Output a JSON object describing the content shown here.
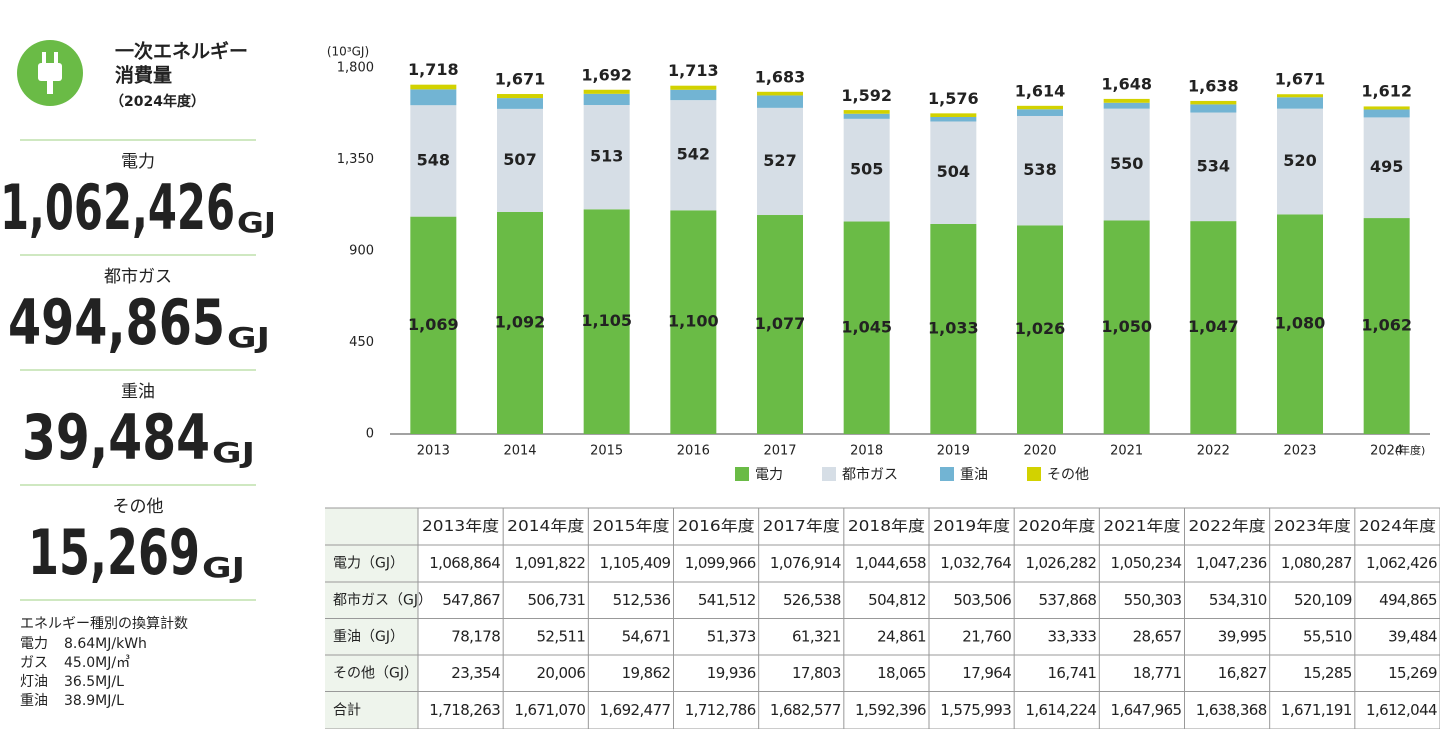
{
  "sidebar": {
    "title_lines": [
      "一次エネルギー",
      "消費量"
    ],
    "subtitle": "（2024年度）",
    "stats": [
      {
        "label": "電力",
        "value": "1,062,426",
        "unit": "GJ"
      },
      {
        "label": "都市ガス",
        "value": "494,865",
        "unit": "GJ"
      },
      {
        "label": "重油",
        "value": "39,484",
        "unit": "GJ"
      },
      {
        "label": "その他",
        "value": "15,269",
        "unit": "GJ"
      }
    ],
    "notes_title": "エネルギー種別の換算計数",
    "notes": [
      [
        "電力",
        "8.64MJ/kWh"
      ],
      [
        "ガス",
        "45.0MJ/㎥"
      ],
      [
        "灯油",
        "36.5MJ/L"
      ],
      [
        "重油",
        "38.9MJ/L"
      ]
    ]
  },
  "chart_data": {
    "type": "stacked_bar",
    "y_unit": "(10³GJ)",
    "x_unit": "(年度)",
    "categories": [
      "2013",
      "2014",
      "2015",
      "2016",
      "2017",
      "2018",
      "2019",
      "2020",
      "2021",
      "2022",
      "2023",
      "2024"
    ],
    "series": [
      {
        "name": "電力",
        "color": "#6abb46",
        "data_labels": true,
        "values": [
          1069,
          1092,
          1105,
          1100,
          1077,
          1045,
          1033,
          1026,
          1050,
          1047,
          1080,
          1062
        ],
        "value_labels": [
          "1,069",
          "1,092",
          "1,105",
          "1,100",
          "1,077",
          "1,045",
          "1,033",
          "1,026",
          "1,050",
          "1,047",
          "1,080",
          "1,062"
        ]
      },
      {
        "name": "都市ガス",
        "color": "#d6dee6",
        "data_labels": true,
        "values": [
          548,
          507,
          513,
          542,
          527,
          505,
          504,
          538,
          550,
          534,
          520,
          495
        ]
      },
      {
        "name": "重油",
        "color": "#72b4d3",
        "values": [
          78,
          53,
          55,
          51,
          61,
          25,
          22,
          33,
          29,
          40,
          56,
          39
        ]
      },
      {
        "name": "その他",
        "color": "#d2d200",
        "values": [
          23,
          20,
          20,
          20,
          18,
          18,
          18,
          17,
          19,
          17,
          15,
          15
        ]
      }
    ],
    "totals": [
      1718,
      1671,
      1692,
      1713,
      1683,
      1592,
      1576,
      1614,
      1648,
      1638,
      1671,
      1612
    ],
    "total_labels": [
      "1,718",
      "1,671",
      "1,692",
      "1,713",
      "1,683",
      "1,592",
      "1,576",
      "1,614",
      "1,648",
      "1,638",
      "1,671",
      "1,612"
    ],
    "total_color": "#7ac143",
    "ylim": [
      0,
      1800
    ],
    "yticks": [
      0,
      450,
      900,
      {
        "value": 1350,
        "label": "1,350"
      },
      {
        "value": 1800,
        "label": "1,800"
      }
    ]
  },
  "table": {
    "header": [
      "2013年度",
      "2014年度",
      "2015年度",
      "2016年度",
      "2017年度",
      "2018年度",
      "2019年度",
      "2020年度",
      "2021年度",
      "2022年度",
      "2023年度",
      "2024年度"
    ],
    "rows": [
      {
        "label": "電力（GJ）",
        "values": [
          "1,068,864",
          "1,091,822",
          "1,105,409",
          "1,099,966",
          "1,076,914",
          "1,044,658",
          "1,032,764",
          "1,026,282",
          "1,050,234",
          "1,047,236",
          "1,080,287",
          "1,062,426"
        ]
      },
      {
        "label": "都市ガス（GJ）",
        "values": [
          "547,867",
          "506,731",
          "512,536",
          "541,512",
          "526,538",
          "504,812",
          "503,506",
          "537,868",
          "550,303",
          "534,310",
          "520,109",
          "494,865"
        ]
      },
      {
        "label": "重油（GJ）",
        "values": [
          "78,178",
          "52,511",
          "54,671",
          "51,373",
          "61,321",
          "24,861",
          "21,760",
          "33,333",
          "28,657",
          "39,995",
          "55,510",
          "39,484"
        ]
      },
      {
        "label": "その他（GJ）",
        "values": [
          "23,354",
          "20,006",
          "19,862",
          "19,936",
          "17,803",
          "18,065",
          "17,964",
          "16,741",
          "18,771",
          "16,827",
          "15,285",
          "15,269"
        ]
      },
      {
        "label": "合計",
        "values": [
          "1,718,263",
          "1,671,070",
          "1,692,477",
          "1,712,786",
          "1,682,577",
          "1,592,396",
          "1,575,993",
          "1,614,224",
          "1,647,965",
          "1,638,368",
          "1,671,191",
          "1,612,044"
        ]
      }
    ]
  }
}
